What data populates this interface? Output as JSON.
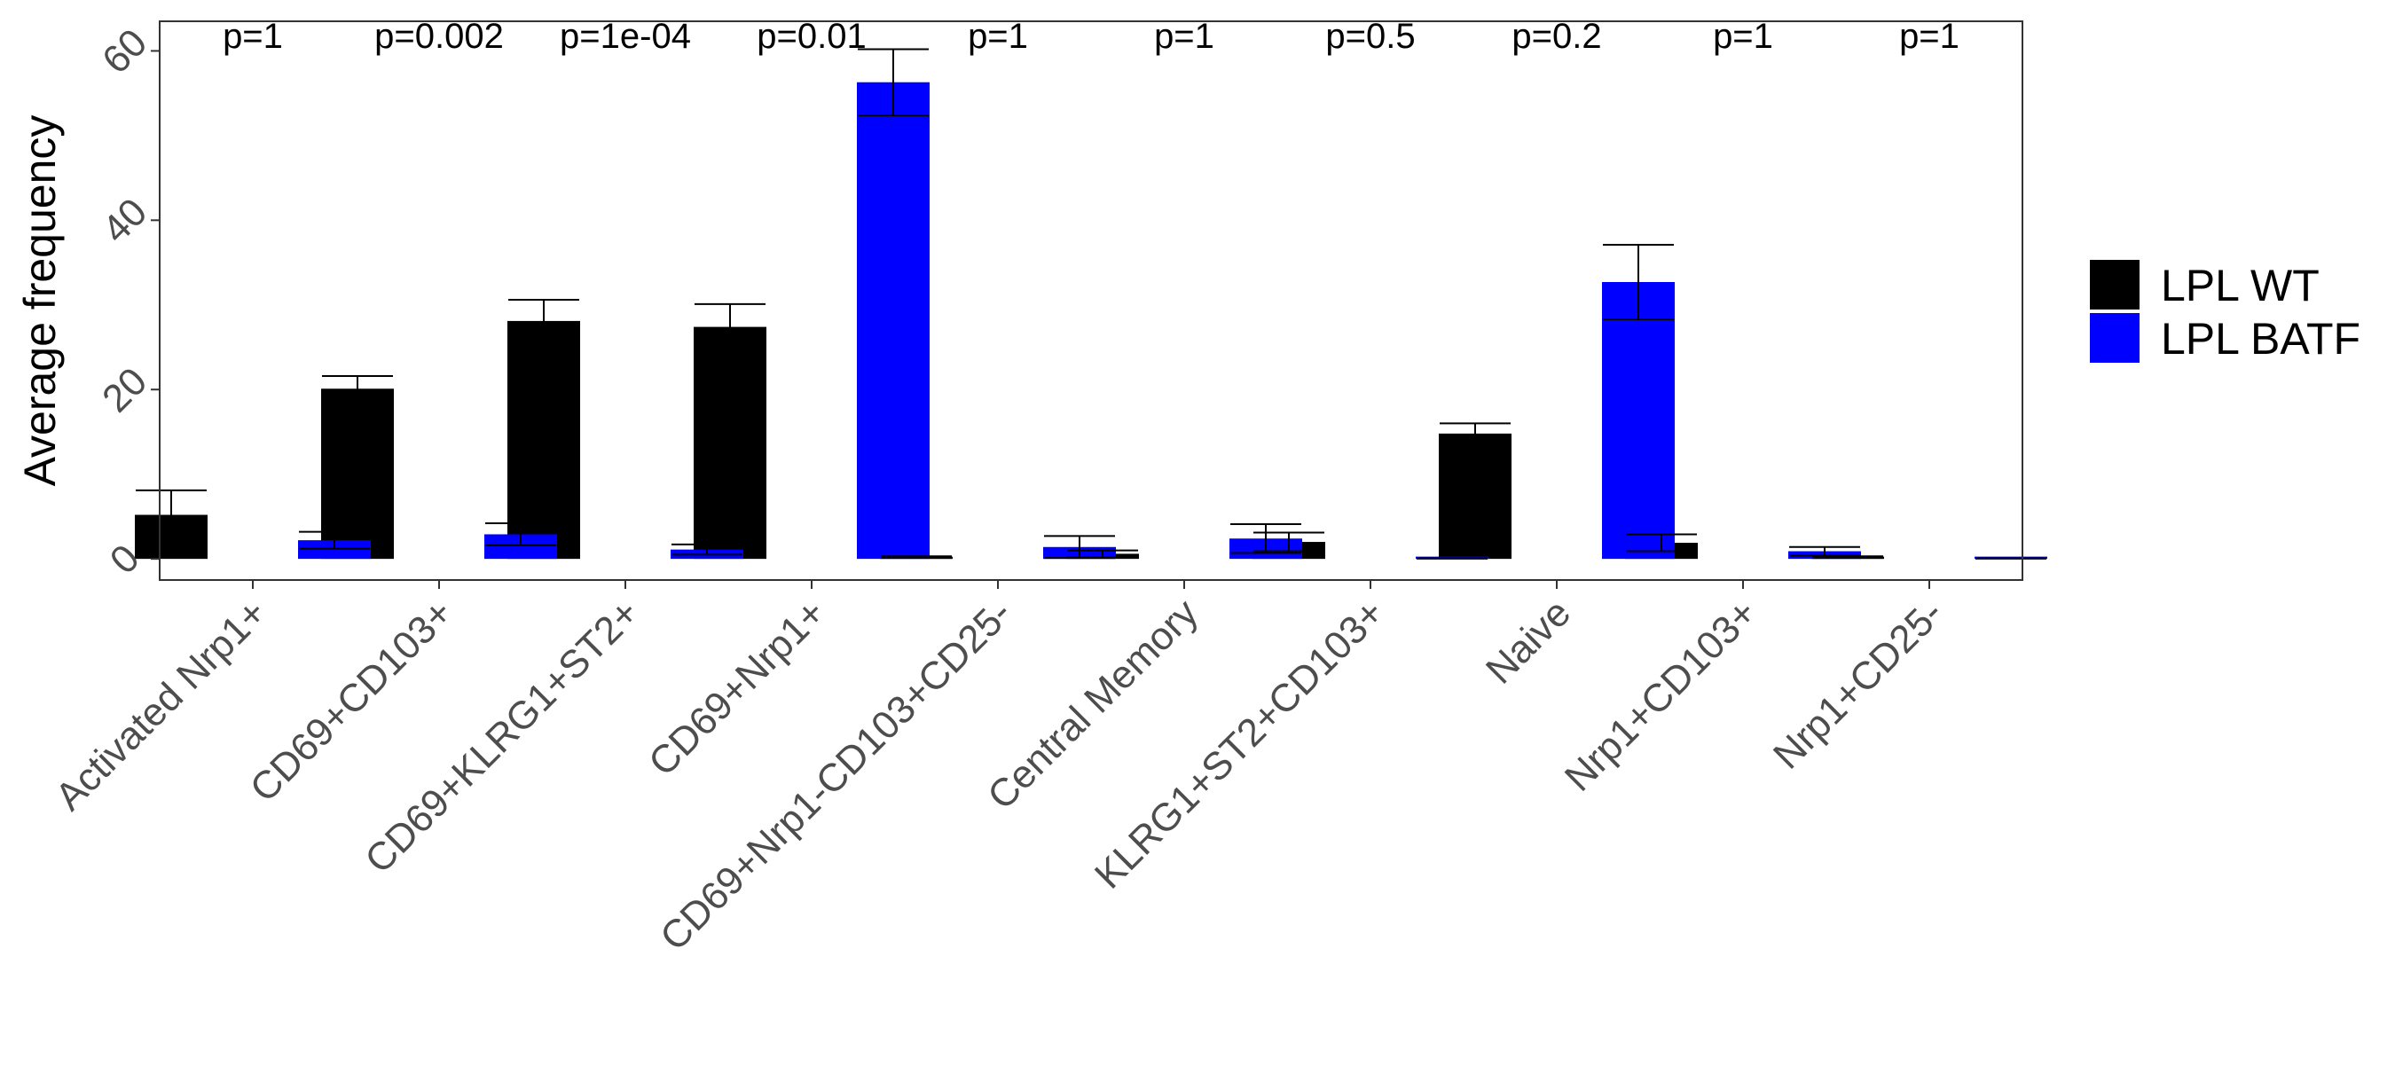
{
  "chart_data": {
    "type": "bar",
    "title": "",
    "xlabel": "",
    "ylabel": "Average frequency",
    "ylim": [
      -2.5,
      63.5
    ],
    "yticks": [
      0,
      20,
      40,
      60
    ],
    "grid": false,
    "legend_position": "right",
    "categories": [
      "Activated Nrp1+",
      "CD69+CD103+",
      "CD69+KLRG1+ST2+",
      "CD69+Nrp1+",
      "CD69+Nrp1-CD103+CD25-",
      "Central Memory",
      "KLRG1+ST2+CD103+",
      "Naive",
      "Nrp1+CD103+",
      "Nrp1+CD25-"
    ],
    "series": [
      {
        "name": "LPL WT",
        "color": "#000000",
        "values": [
          5.2,
          20.1,
          28.1,
          27.4,
          0.2,
          0.6,
          2.0,
          14.8,
          1.9,
          0.2
        ],
        "error": [
          2.9,
          1.5,
          2.5,
          2.7,
          0.1,
          0.4,
          1.1,
          1.2,
          1.0,
          0.1
        ]
      },
      {
        "name": "LPL BATF",
        "color": "#0000ff",
        "values": [
          2.2,
          2.9,
          1.1,
          56.3,
          1.4,
          2.4,
          0.05,
          32.7,
          0.9,
          0.05
        ],
        "error": [
          1.0,
          1.3,
          0.6,
          3.9,
          1.3,
          1.7,
          0.02,
          4.4,
          0.5,
          0.02
        ]
      }
    ],
    "annotations": [
      "p=1",
      "p=0.002",
      "p=1e-04",
      "p=0.01",
      "p=1",
      "p=1",
      "p=0.5",
      "p=0.2",
      "p=1",
      "p=1"
    ]
  }
}
